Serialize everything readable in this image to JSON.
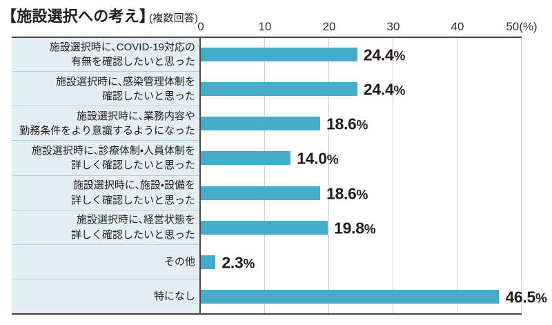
{
  "title": {
    "main": "【施設選択への考え】",
    "note": "(複数回答)"
  },
  "axis": {
    "ticks": [
      "0",
      "10",
      "20",
      "30",
      "40",
      "50"
    ],
    "tick_values": [
      0,
      10,
      20,
      30,
      40,
      50
    ],
    "unit_suffix": "(%)",
    "max": 50
  },
  "rows": [
    {
      "label_lines": [
        "施設選択時に、COVID-19対応の",
        "有無を確認したいと思った"
      ],
      "value": 24.4,
      "value_label": "24.4%"
    },
    {
      "label_lines": [
        "施設選択時に、感染管理体制を",
        "確認したいと思った"
      ],
      "value": 24.4,
      "value_label": "24.4%"
    },
    {
      "label_lines": [
        "施設選択時に、業務内容や",
        "勤務条件をより意識するようになった"
      ],
      "value": 18.6,
      "value_label": "18.6%"
    },
    {
      "label_lines": [
        "施設選択時に、診療体制・人員体制を",
        "詳しく確認したいと思った"
      ],
      "value": 14.0,
      "value_label": "14.0%"
    },
    {
      "label_lines": [
        "施設選択時に、施設・設備を",
        "詳しく確認したいと思った"
      ],
      "value": 18.6,
      "value_label": "18.6%"
    },
    {
      "label_lines": [
        "施設選択時に、経営状態を",
        "詳しく確認したいと思った"
      ],
      "value": 19.8,
      "value_label": "19.8%"
    },
    {
      "label_lines": [
        "その他"
      ],
      "value": 2.3,
      "value_label": "2.3%"
    },
    {
      "label_lines": [
        "特になし"
      ],
      "value": 46.5,
      "value_label": "46.5%"
    }
  ],
  "colors": {
    "bar": "#45adc9",
    "label_background": "#e4eef5",
    "row_separator": "#c3c9cf",
    "gridline": "#cdcdcd",
    "border": "#474341",
    "text": "#241e1b"
  },
  "chart_data": {
    "type": "bar",
    "orientation": "horizontal",
    "title": "【施設選択への考え】(複数回答)",
    "categories": [
      "施設選択時に、COVID-19対応の有無を確認したいと思った",
      "施設選択時に、感染管理体制を確認したいと思った",
      "施設選択時に、業務内容や勤務条件をより意識するようになった",
      "施設選択時に、診療体制・人員体制を詳しく確認したいと思った",
      "施設選択時に、施設・設備を詳しく確認したいと思った",
      "施設選択時に、経営状態を詳しく確認したいと思った",
      "その他",
      "特になし"
    ],
    "values": [
      24.4,
      24.4,
      18.6,
      14.0,
      18.6,
      19.8,
      2.3,
      46.5
    ],
    "data_labels": [
      "24.4%",
      "24.4%",
      "18.6%",
      "14.0%",
      "18.6%",
      "19.8%",
      "2.3%",
      "46.5%"
    ],
    "xlabel": "(%)",
    "ylabel": "",
    "xlim": [
      0,
      50
    ],
    "x_ticks": [
      0,
      10,
      20,
      30,
      40,
      50
    ],
    "grid": true,
    "legend": false,
    "bar_color": "#45adc9"
  }
}
